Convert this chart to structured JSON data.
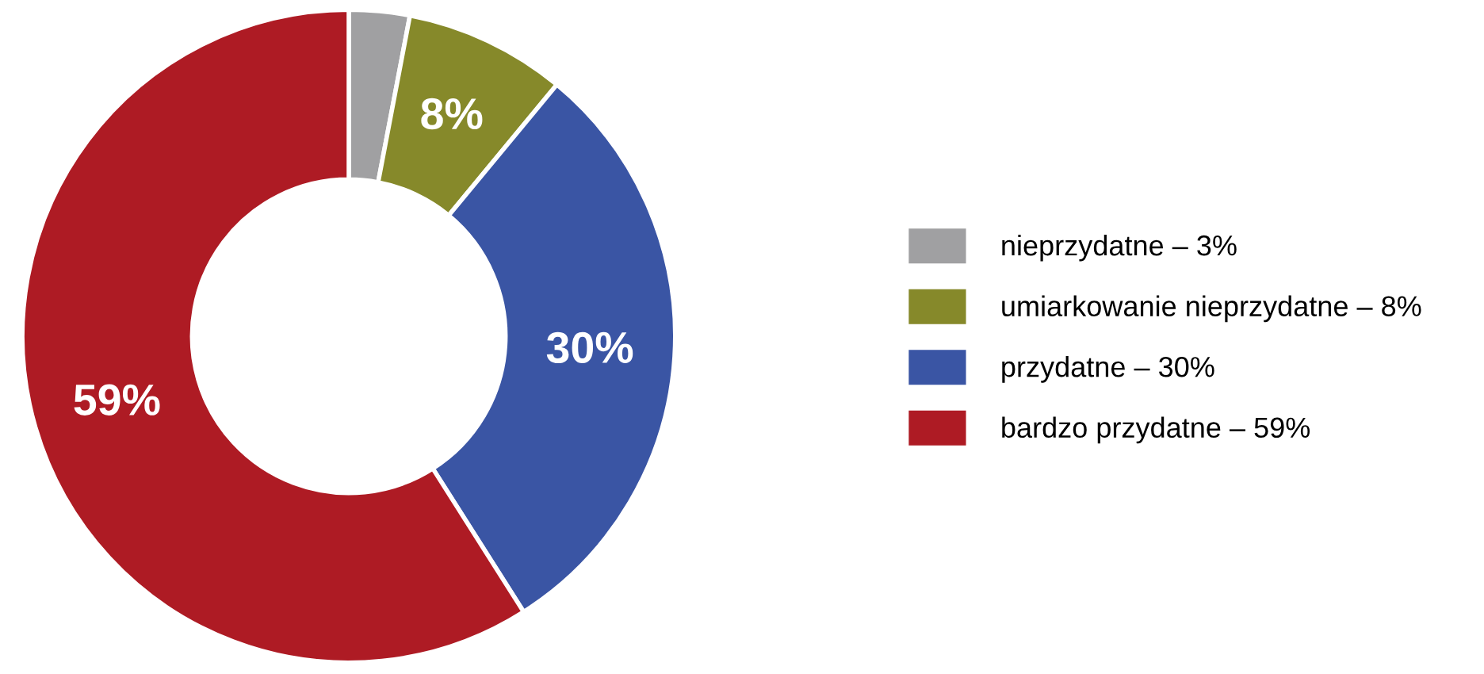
{
  "chart_data": {
    "type": "donut",
    "categories": [
      "nieprzydatne – 3%",
      "umiarkowanie nieprzydatne – 8%",
      "przydatne – 30%",
      "bardzo przydatne – 59%"
    ],
    "values": [
      3,
      8,
      30,
      59
    ],
    "colors": [
      "#a0a0a2",
      "#86892a",
      "#3a55a4",
      "#ae1b24"
    ],
    "value_labels": [
      null,
      "8%",
      "30%",
      "59%"
    ],
    "legend": "right"
  }
}
